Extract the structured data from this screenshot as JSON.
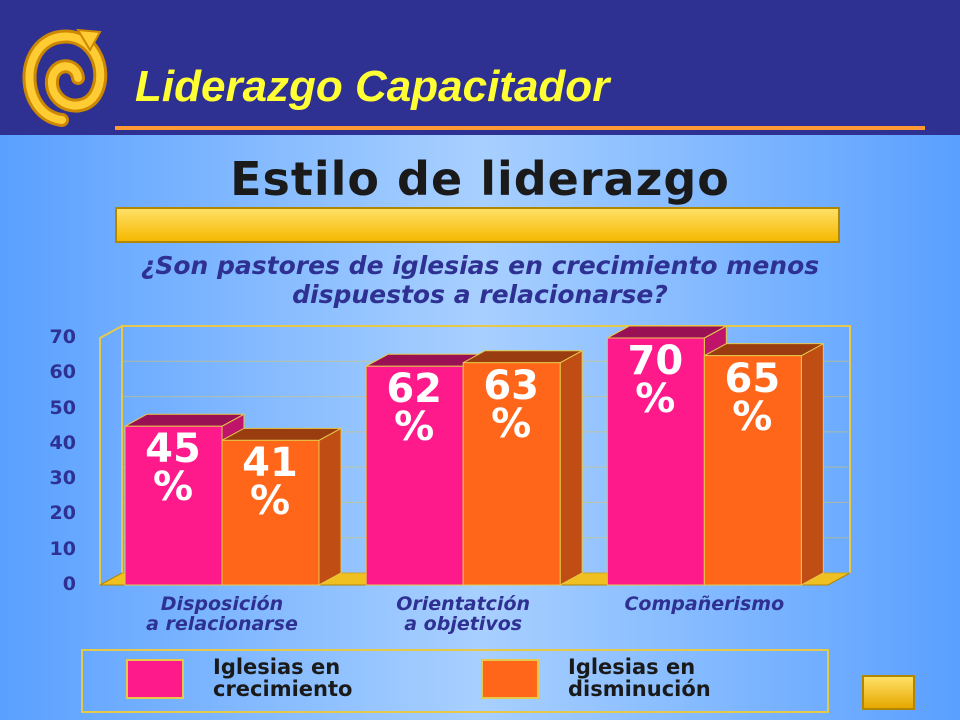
{
  "header": {
    "title": "Liderazgo Capacitador"
  },
  "chart_data": {
    "type": "bar3d",
    "title": "Estilo de liderazgo",
    "subtitle": "¿Son pastores de iglesias en crecimiento menos\ndispuestos a relacionarse?",
    "categories": [
      "Disposición\na relacionarse",
      "Orientatción\na objetivos",
      "Compañerismo"
    ],
    "series": [
      {
        "name": "Iglesias en\ncrecimiento",
        "color": "#ff1a8c",
        "values": [
          45,
          62,
          70
        ],
        "value_labels": [
          "45\n%",
          "62\n%",
          "70\n%"
        ]
      },
      {
        "name": "Iglesias en\ndisminución",
        "color": "#ff661a",
        "values": [
          41,
          63,
          65
        ],
        "value_labels": [
          "41\n%",
          "63\n%",
          "65\n%"
        ]
      }
    ],
    "ylim": [
      0,
      70
    ],
    "yticks": [
      0,
      10,
      20,
      30,
      40,
      50,
      60,
      70
    ]
  }
}
